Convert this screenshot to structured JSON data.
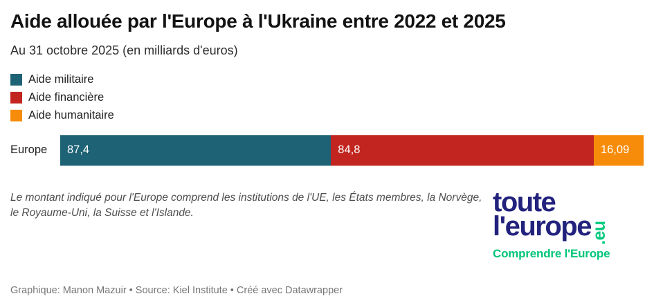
{
  "header": {
    "title": "Aide allouée par l'Europe à l'Ukraine entre 2022 et 2025",
    "subtitle": "Au 31 octobre 2025 (en milliards d'euros)"
  },
  "chart_data": {
    "type": "bar",
    "orientation": "horizontal",
    "stacked": true,
    "title": "Aide allouée par l'Europe à l'Ukraine entre 2022 et 2025",
    "subtitle": "Au 31 octobre 2025 (en milliards d'euros)",
    "unit": "milliards d'euros",
    "categories": [
      "Europe"
    ],
    "series": [
      {
        "name": "Aide militaire",
        "color": "#1e6276",
        "values": [
          87.4
        ],
        "label": "87,4"
      },
      {
        "name": "Aide financière",
        "color": "#c2251f",
        "values": [
          84.8
        ],
        "label": "84,8"
      },
      {
        "name": "Aide humanitaire",
        "color": "#f78c0a",
        "values": [
          16.09
        ],
        "label": "16,09"
      }
    ],
    "total": 188.29,
    "value_labels": "inside-left",
    "legend_position": "top-left",
    "grid": false,
    "axis_ticks": "none"
  },
  "note": {
    "text": "Le montant indiqué pour l'Europe comprend les institutions de l'UE, les États membres, la Norvège, le Royaume-Uni, la Suisse et l'Islande."
  },
  "logo": {
    "line1": "toute",
    "line2": "l'europe",
    "suffix": ".eu",
    "tagline": "Comprendre l'Europe",
    "navy_color": "#22227d",
    "green_color": "#00ca7c"
  },
  "footer": {
    "credits": "Graphique: Manon Mazuir • Source: Kiel Institute • Créé avec Datawrapper"
  }
}
